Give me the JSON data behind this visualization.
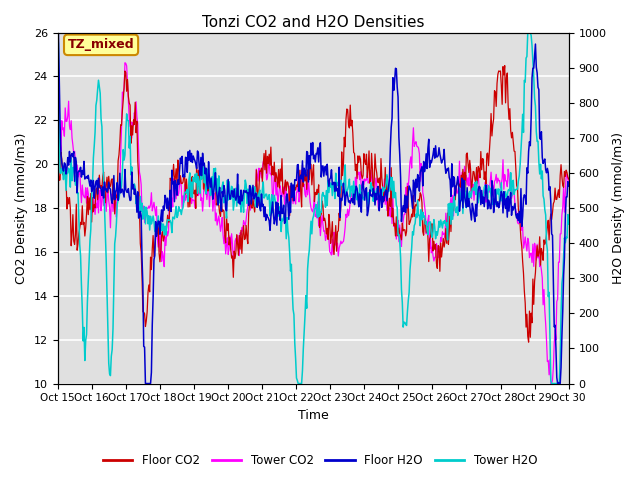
{
  "title": "Tonzi CO2 and H2O Densities",
  "xlabel": "Time",
  "ylabel_left": "CO2 Density (mmol/m3)",
  "ylabel_right": "H2O Density (mmol/m3)",
  "ylim_left": [
    10,
    26
  ],
  "ylim_right": [
    0,
    1000
  ],
  "annotation_text": "TZ_mixed",
  "annotation_bg": "#ffff99",
  "annotation_border": "#cc8800",
  "plot_bg": "#e0e0e0",
  "fig_bg": "#ffffff",
  "colors": {
    "floor_co2": "#cc0000",
    "tower_co2": "#ff00ff",
    "floor_h2o": "#0000cc",
    "tower_h2o": "#00cccc"
  },
  "x_tick_labels": [
    "Oct 15",
    "Oct 16",
    "Oct 17",
    "Oct 18",
    "Oct 19",
    "Oct 20",
    "Oct 21",
    "Oct 22",
    "Oct 23",
    "Oct 24",
    "Oct 25",
    "Oct 26",
    "Oct 27",
    "Oct 28",
    "Oct 29",
    "Oct 30"
  ],
  "x_ticks": [
    0,
    1,
    2,
    3,
    4,
    5,
    6,
    7,
    8,
    9,
    10,
    11,
    12,
    13,
    14,
    15
  ],
  "yticks_left": [
    10,
    12,
    14,
    16,
    18,
    20,
    22,
    24,
    26
  ],
  "yticks_right": [
    0,
    100,
    200,
    300,
    400,
    500,
    600,
    700,
    800,
    900,
    1000
  ]
}
